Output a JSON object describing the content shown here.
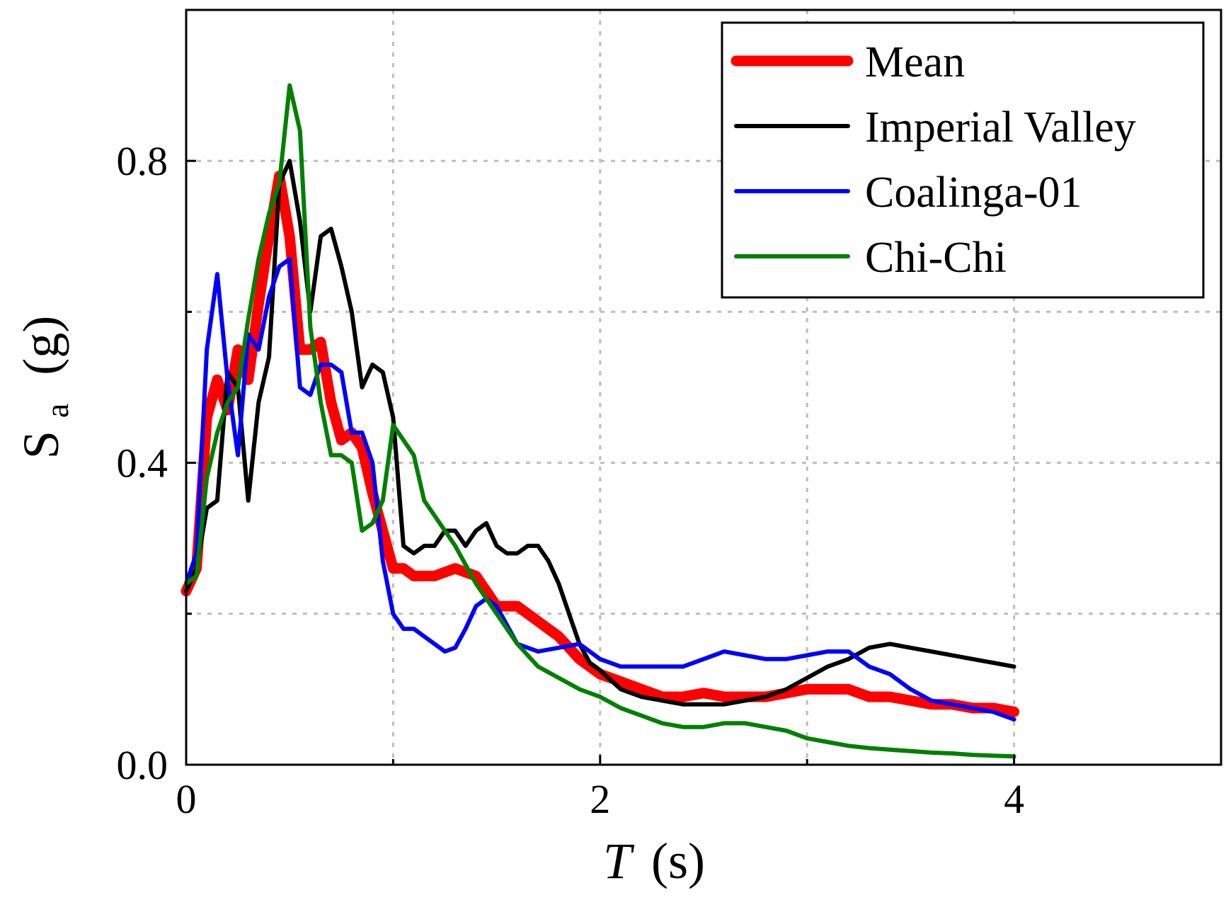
{
  "chart_data": {
    "type": "line",
    "title": "",
    "xlabel_var": "T",
    "xlabel_unit": "(s)",
    "ylabel_main": "S",
    "ylabel_sub": "a",
    "ylabel_unit": "(g)",
    "xlim": [
      0,
      5
    ],
    "ylim": [
      0,
      1.0
    ],
    "grid": true,
    "legend_position": "top-right",
    "x_ticks": [
      0,
      2,
      4
    ],
    "x_tick_labels": [
      "0",
      "2",
      "4"
    ],
    "x_minor_ticks": [
      1,
      3
    ],
    "y_ticks": [
      0.0,
      0.4,
      0.8
    ],
    "y_tick_labels": [
      "0.0",
      "0.4",
      "0.8"
    ],
    "y_minor_ticks": [
      0.2,
      0.6
    ],
    "series": [
      {
        "name": "Mean",
        "color": "#ff0000",
        "width": 15,
        "x": [
          0.0,
          0.05,
          0.1,
          0.15,
          0.2,
          0.25,
          0.3,
          0.35,
          0.4,
          0.45,
          0.5,
          0.55,
          0.6,
          0.65,
          0.7,
          0.75,
          0.8,
          0.85,
          0.9,
          0.95,
          1.0,
          1.05,
          1.1,
          1.15,
          1.2,
          1.3,
          1.4,
          1.5,
          1.6,
          1.7,
          1.8,
          1.9,
          2.0,
          2.1,
          2.2,
          2.3,
          2.4,
          2.5,
          2.6,
          2.7,
          2.8,
          2.9,
          3.0,
          3.1,
          3.2,
          3.3,
          3.4,
          3.5,
          3.6,
          3.7,
          3.8,
          3.9,
          4.0
        ],
        "y": [
          0.23,
          0.26,
          0.46,
          0.51,
          0.47,
          0.55,
          0.51,
          0.61,
          0.7,
          0.78,
          0.7,
          0.55,
          0.55,
          0.56,
          0.48,
          0.43,
          0.44,
          0.42,
          0.36,
          0.31,
          0.26,
          0.26,
          0.25,
          0.25,
          0.25,
          0.26,
          0.25,
          0.21,
          0.21,
          0.19,
          0.17,
          0.14,
          0.12,
          0.11,
          0.1,
          0.09,
          0.09,
          0.095,
          0.09,
          0.09,
          0.09,
          0.095,
          0.1,
          0.1,
          0.1,
          0.09,
          0.09,
          0.085,
          0.08,
          0.08,
          0.075,
          0.075,
          0.07
        ]
      },
      {
        "name": "Imperial Valley",
        "color": "#000000",
        "width": 6,
        "x": [
          0.0,
          0.05,
          0.1,
          0.15,
          0.2,
          0.25,
          0.3,
          0.35,
          0.4,
          0.45,
          0.5,
          0.55,
          0.6,
          0.65,
          0.7,
          0.75,
          0.8,
          0.85,
          0.9,
          0.95,
          1.0,
          1.05,
          1.1,
          1.15,
          1.2,
          1.25,
          1.3,
          1.35,
          1.4,
          1.45,
          1.5,
          1.55,
          1.6,
          1.65,
          1.7,
          1.75,
          1.8,
          1.85,
          1.9,
          1.95,
          2.0,
          2.1,
          2.2,
          2.3,
          2.4,
          2.5,
          2.6,
          2.7,
          2.8,
          2.9,
          3.0,
          3.1,
          3.2,
          3.3,
          3.4,
          3.5,
          3.6,
          3.7,
          3.8,
          3.9,
          4.0
        ],
        "y": [
          0.23,
          0.26,
          0.34,
          0.35,
          0.52,
          0.5,
          0.35,
          0.48,
          0.54,
          0.77,
          0.8,
          0.72,
          0.6,
          0.7,
          0.71,
          0.66,
          0.6,
          0.5,
          0.53,
          0.52,
          0.46,
          0.29,
          0.28,
          0.29,
          0.29,
          0.31,
          0.31,
          0.29,
          0.31,
          0.32,
          0.29,
          0.28,
          0.28,
          0.29,
          0.29,
          0.27,
          0.24,
          0.2,
          0.16,
          0.135,
          0.125,
          0.1,
          0.09,
          0.085,
          0.08,
          0.08,
          0.08,
          0.085,
          0.09,
          0.1,
          0.115,
          0.13,
          0.14,
          0.155,
          0.16,
          0.155,
          0.15,
          0.145,
          0.14,
          0.135,
          0.13
        ]
      },
      {
        "name": "Coalinga-01",
        "color": "#0000ff",
        "width": 6,
        "x": [
          0.0,
          0.05,
          0.1,
          0.15,
          0.2,
          0.25,
          0.3,
          0.35,
          0.4,
          0.45,
          0.5,
          0.55,
          0.6,
          0.65,
          0.7,
          0.75,
          0.8,
          0.85,
          0.9,
          0.95,
          1.0,
          1.05,
          1.1,
          1.15,
          1.2,
          1.25,
          1.3,
          1.35,
          1.4,
          1.45,
          1.5,
          1.6,
          1.7,
          1.8,
          1.9,
          2.0,
          2.1,
          2.2,
          2.3,
          2.4,
          2.5,
          2.6,
          2.7,
          2.8,
          2.9,
          3.0,
          3.1,
          3.2,
          3.3,
          3.4,
          3.5,
          3.6,
          3.7,
          3.8,
          3.9,
          4.0
        ],
        "y": [
          0.24,
          0.28,
          0.55,
          0.65,
          0.51,
          0.41,
          0.57,
          0.55,
          0.62,
          0.66,
          0.67,
          0.5,
          0.49,
          0.53,
          0.53,
          0.52,
          0.44,
          0.44,
          0.4,
          0.27,
          0.2,
          0.18,
          0.18,
          0.17,
          0.16,
          0.15,
          0.155,
          0.18,
          0.21,
          0.22,
          0.21,
          0.16,
          0.15,
          0.155,
          0.16,
          0.14,
          0.13,
          0.13,
          0.13,
          0.13,
          0.14,
          0.15,
          0.145,
          0.14,
          0.14,
          0.145,
          0.15,
          0.15,
          0.13,
          0.12,
          0.1,
          0.085,
          0.08,
          0.075,
          0.07,
          0.06
        ]
      },
      {
        "name": "Chi-Chi",
        "color": "#008000",
        "width": 6,
        "x": [
          0.0,
          0.05,
          0.1,
          0.15,
          0.2,
          0.25,
          0.3,
          0.35,
          0.4,
          0.45,
          0.5,
          0.55,
          0.6,
          0.65,
          0.7,
          0.75,
          0.8,
          0.85,
          0.9,
          0.95,
          1.0,
          1.05,
          1.1,
          1.15,
          1.2,
          1.3,
          1.4,
          1.5,
          1.6,
          1.7,
          1.8,
          1.9,
          2.0,
          2.1,
          2.2,
          2.3,
          2.4,
          2.5,
          2.6,
          2.7,
          2.8,
          2.9,
          3.0,
          3.1,
          3.2,
          3.3,
          3.4,
          3.5,
          3.6,
          3.7,
          3.8,
          3.9,
          4.0
        ],
        "y": [
          0.24,
          0.25,
          0.38,
          0.44,
          0.48,
          0.5,
          0.59,
          0.67,
          0.73,
          0.77,
          0.9,
          0.84,
          0.58,
          0.48,
          0.41,
          0.41,
          0.4,
          0.31,
          0.32,
          0.35,
          0.45,
          0.43,
          0.41,
          0.35,
          0.33,
          0.29,
          0.24,
          0.2,
          0.16,
          0.13,
          0.115,
          0.1,
          0.09,
          0.075,
          0.065,
          0.055,
          0.05,
          0.05,
          0.055,
          0.055,
          0.05,
          0.045,
          0.035,
          0.03,
          0.025,
          0.022,
          0.02,
          0.018,
          0.016,
          0.015,
          0.013,
          0.012,
          0.011
        ]
      }
    ]
  }
}
